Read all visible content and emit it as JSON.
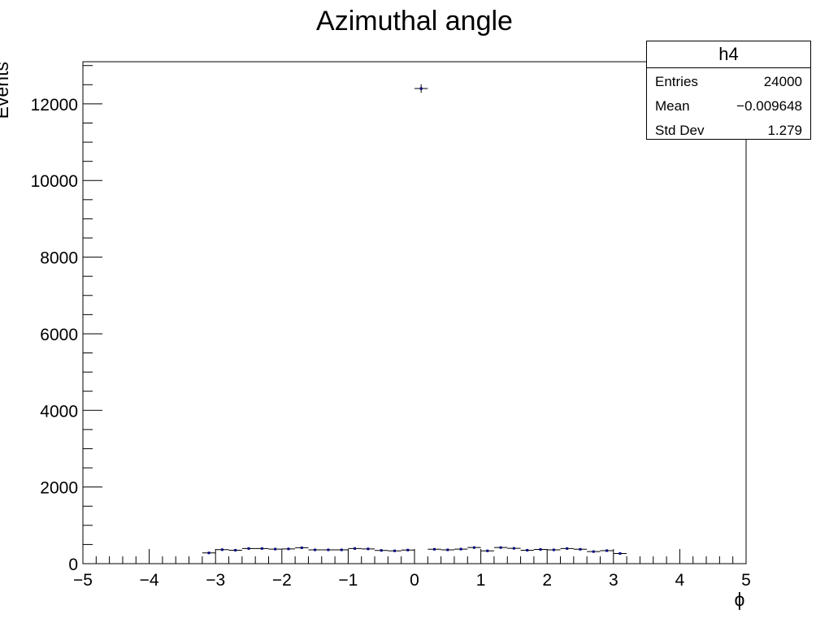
{
  "chart_data": {
    "type": "bar",
    "title": "Azimuthal angle",
    "xlabel": "ϕ",
    "ylabel": "Events",
    "xlim": [
      -5,
      5
    ],
    "ylim": [
      0,
      13100
    ],
    "x_ticks": [
      "−5",
      "−4",
      "−3",
      "−2",
      "−1",
      "0",
      "1",
      "2",
      "3",
      "4",
      "5"
    ],
    "y_ticks": [
      "0",
      "2000",
      "4000",
      "6000",
      "8000",
      "10000",
      "12000"
    ],
    "bin_width": 0.2,
    "bins": [
      {
        "x": -3.1,
        "y": 280
      },
      {
        "x": -2.9,
        "y": 365
      },
      {
        "x": -2.7,
        "y": 350
      },
      {
        "x": -2.5,
        "y": 395
      },
      {
        "x": -2.3,
        "y": 395
      },
      {
        "x": -2.1,
        "y": 380
      },
      {
        "x": -1.9,
        "y": 385
      },
      {
        "x": -1.7,
        "y": 415
      },
      {
        "x": -1.5,
        "y": 360
      },
      {
        "x": -1.3,
        "y": 360
      },
      {
        "x": -1.1,
        "y": 360
      },
      {
        "x": -0.9,
        "y": 395
      },
      {
        "x": -0.7,
        "y": 385
      },
      {
        "x": -0.5,
        "y": 345
      },
      {
        "x": -0.3,
        "y": 335
      },
      {
        "x": -0.1,
        "y": 355
      },
      {
        "x": 0.1,
        "y": 12400
      },
      {
        "x": 0.3,
        "y": 375
      },
      {
        "x": 0.5,
        "y": 360
      },
      {
        "x": 0.7,
        "y": 380
      },
      {
        "x": 0.9,
        "y": 420
      },
      {
        "x": 1.1,
        "y": 335
      },
      {
        "x": 1.3,
        "y": 420
      },
      {
        "x": 1.5,
        "y": 400
      },
      {
        "x": 1.7,
        "y": 350
      },
      {
        "x": 1.9,
        "y": 370
      },
      {
        "x": 2.1,
        "y": 360
      },
      {
        "x": 2.3,
        "y": 395
      },
      {
        "x": 2.5,
        "y": 375
      },
      {
        "x": 2.7,
        "y": 315
      },
      {
        "x": 2.9,
        "y": 340
      },
      {
        "x": 3.1,
        "y": 265
      }
    ],
    "stats": {
      "name": "h4",
      "rows": [
        {
          "label": "Entries",
          "value": "24000"
        },
        {
          "label": "Mean",
          "value": "−0.009648"
        },
        {
          "label": "Std Dev",
          "value": "1.279"
        }
      ]
    },
    "marker_color": "#000080",
    "grid": false,
    "legend": "none"
  }
}
